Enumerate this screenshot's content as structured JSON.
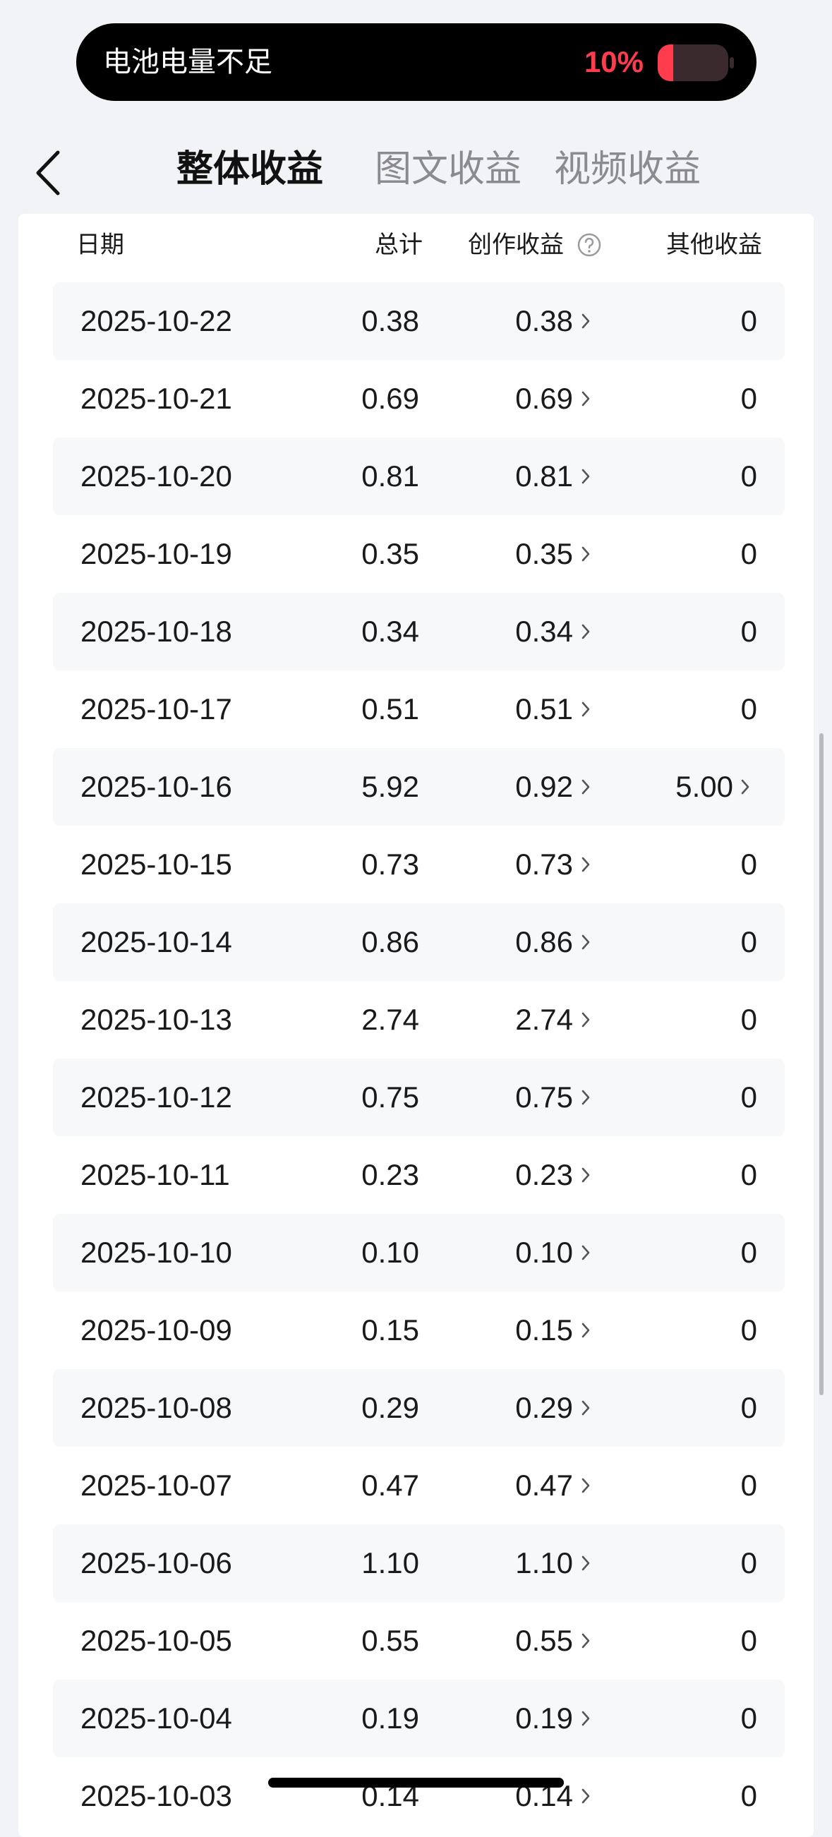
{
  "status": {
    "message": "电池电量不足",
    "battery": "10%"
  },
  "tabs": [
    "整体收益",
    "图文收益",
    "视频收益"
  ],
  "table": {
    "headers": [
      "日期",
      "总计",
      "创作收益",
      "其他收益"
    ],
    "rows": [
      [
        "2025-10-22",
        "0.38",
        "0.38",
        "0"
      ],
      [
        "2025-10-21",
        "0.69",
        "0.69",
        "0"
      ],
      [
        "2025-10-20",
        "0.81",
        "0.81",
        "0"
      ],
      [
        "2025-10-19",
        "0.35",
        "0.35",
        "0"
      ],
      [
        "2025-10-18",
        "0.34",
        "0.34",
        "0"
      ],
      [
        "2025-10-17",
        "0.51",
        "0.51",
        "0"
      ],
      [
        "2025-10-16",
        "5.92",
        "0.92",
        "5.00"
      ],
      [
        "2025-10-15",
        "0.73",
        "0.73",
        "0"
      ],
      [
        "2025-10-14",
        "0.86",
        "0.86",
        "0"
      ],
      [
        "2025-10-13",
        "2.74",
        "2.74",
        "0"
      ],
      [
        "2025-10-12",
        "0.75",
        "0.75",
        "0"
      ],
      [
        "2025-10-11",
        "0.23",
        "0.23",
        "0"
      ],
      [
        "2025-10-10",
        "0.10",
        "0.10",
        "0"
      ],
      [
        "2025-10-09",
        "0.15",
        "0.15",
        "0"
      ],
      [
        "2025-10-08",
        "0.29",
        "0.29",
        "0"
      ],
      [
        "2025-10-07",
        "0.47",
        "0.47",
        "0"
      ],
      [
        "2025-10-06",
        "1.10",
        "1.10",
        "0"
      ],
      [
        "2025-10-05",
        "0.55",
        "0.55",
        "0"
      ],
      [
        "2025-10-04",
        "0.19",
        "0.19",
        "0"
      ],
      [
        "2025-10-03",
        "0.14",
        "0.14",
        "0"
      ]
    ]
  }
}
